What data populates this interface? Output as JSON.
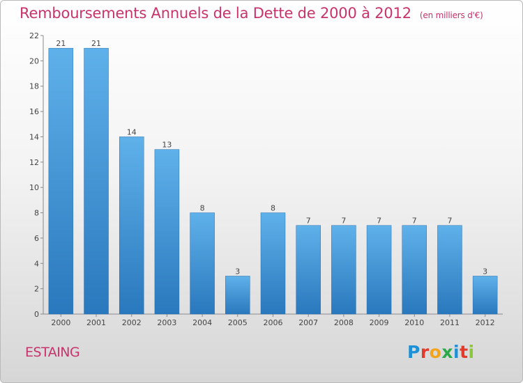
{
  "title": {
    "main": "Remboursements Annuels de la Dette de 2000 à 2012",
    "unit": "(en milliers d'€)"
  },
  "commune": "ESTAING",
  "logo": {
    "letters": [
      {
        "char": "P",
        "color": "#1e90d8"
      },
      {
        "char": "r",
        "color": "#e23b2c"
      },
      {
        "char": "o",
        "color": "#f2a41c"
      },
      {
        "char": "x",
        "color": "#2ba84a"
      },
      {
        "char": "i",
        "color": "#1e90d8"
      },
      {
        "char": "t",
        "color": "#e23b2c"
      },
      {
        "char": "i",
        "color": "#8bc63f"
      }
    ]
  },
  "chart_data": {
    "type": "bar",
    "categories": [
      "2000",
      "2001",
      "2002",
      "2003",
      "2004",
      "2005",
      "2006",
      "2007",
      "2008",
      "2009",
      "2010",
      "2011",
      "2012"
    ],
    "values": [
      21,
      21,
      14,
      13,
      8,
      3,
      8,
      7,
      7,
      7,
      7,
      7,
      3
    ],
    "title": "Remboursements Annuels de la Dette de 2000 à 2012",
    "ylim": [
      0,
      22
    ],
    "yticks": [
      0,
      2,
      4,
      6,
      8,
      10,
      12,
      14,
      16,
      18,
      20,
      22
    ],
    "grid": false,
    "colors": {
      "bar_top": "#5fb1ea",
      "bar_bottom": "#2a78bd",
      "text": "#444444",
      "axis": "#888888",
      "title": "#c8336b"
    }
  }
}
